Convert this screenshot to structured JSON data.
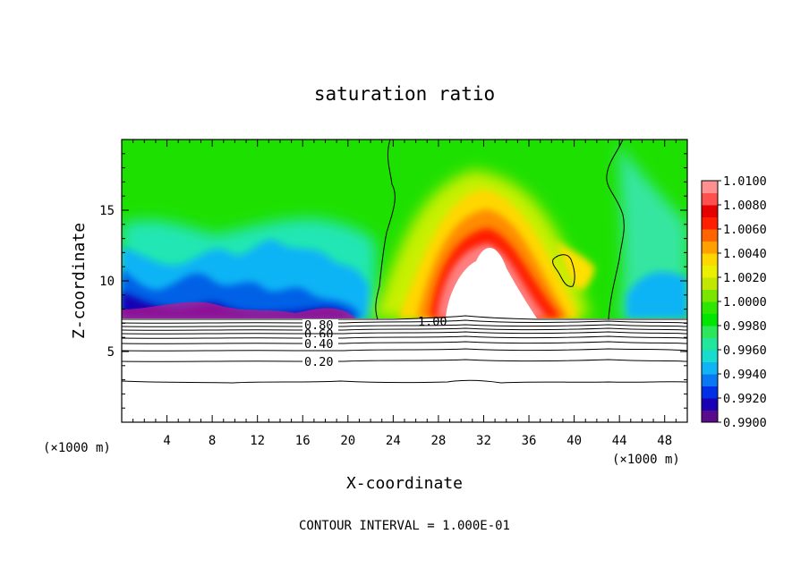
{
  "chart_data": {
    "type": "heatmap",
    "title": "saturation ratio",
    "xlabel": "X-coordinate",
    "ylabel": "Z-coordinate",
    "x_unit": "(×1000 m)",
    "z_unit": "(×1000 m)",
    "xlim": [
      0,
      50
    ],
    "ylim": [
      0,
      20
    ],
    "x_ticks": [
      "4",
      "8",
      "12",
      "16",
      "20",
      "24",
      "28",
      "32",
      "36",
      "40",
      "44",
      "48"
    ],
    "y_ticks": [
      "5",
      "10",
      "15"
    ],
    "colorbar": {
      "min": 0.99,
      "max": 1.01,
      "labels": [
        "0.9900",
        "0.9920",
        "0.9940",
        "0.9960",
        "0.9980",
        "1.0000",
        "1.0020",
        "1.0040",
        "1.0060",
        "1.0080",
        "1.0100"
      ],
      "colors": [
        "#5a0a8c",
        "#1a00b4",
        "#0030e6",
        "#0878f5",
        "#10b4f5",
        "#18dcd0",
        "#22e69b",
        "#2ee65a",
        "#00e600",
        "#2fe600",
        "#7ae600",
        "#c3e600",
        "#eaf000",
        "#ffd700",
        "#ffa000",
        "#ff6400",
        "#ff2000",
        "#e60000",
        "#ff5050",
        "#ff9090"
      ]
    },
    "contour_labels": [
      "0.80",
      "0.60",
      "0.40",
      "0.20",
      "1.00"
    ],
    "contour_interval_note": "CONTOUR INTERVAL = 1.000E-01"
  }
}
